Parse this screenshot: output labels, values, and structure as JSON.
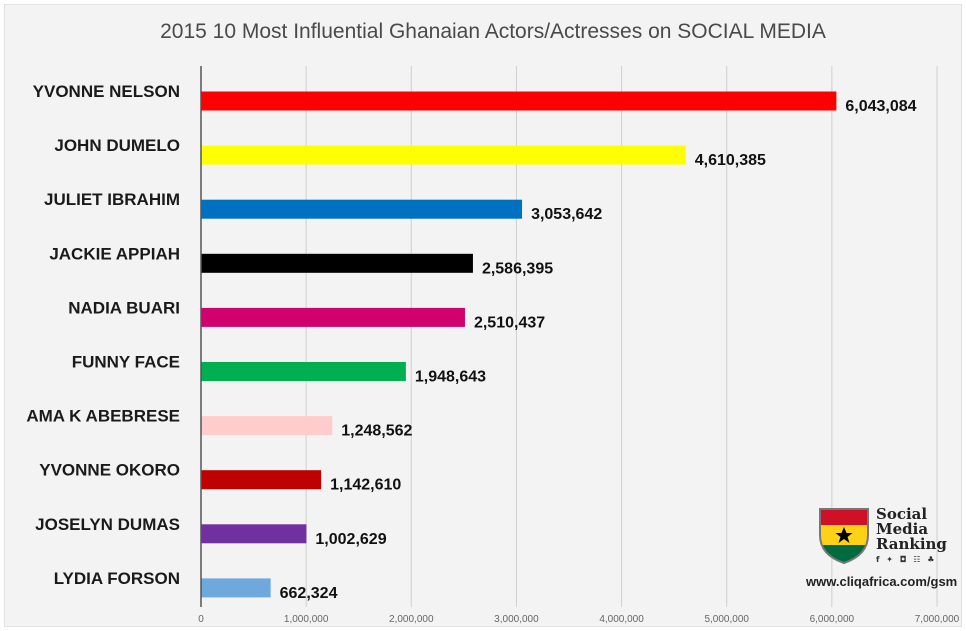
{
  "chart_data": {
    "type": "bar",
    "orientation": "horizontal",
    "title": "2015 10 Most Influential Ghanaian Actors/Actresses on SOCIAL MEDIA",
    "categories": [
      "YVONNE NELSON",
      "JOHN DUMELO",
      "JULIET IBRAHIM",
      "JACKIE APPIAH",
      "NADIA BUARI",
      "FUNNY FACE",
      "AMA K ABEBRESE",
      "YVONNE OKORO",
      "JOSELYN DUMAS",
      "LYDIA FORSON"
    ],
    "values": [
      6043084,
      4610385,
      3053642,
      2586395,
      2510437,
      1948643,
      1248562,
      1142610,
      1002629,
      662324
    ],
    "value_labels": [
      "6,043,084",
      "4,610,385",
      "3,053,642",
      "2,586,395",
      "2,510,437",
      "1,948,643",
      "1,248,562",
      "1,142,610",
      "1,002,629",
      "662,324"
    ],
    "colors": [
      "#ff0000",
      "#ffff00",
      "#0070c0",
      "#000000",
      "#d1006f",
      "#00b050",
      "#ffcccc",
      "#c00000",
      "#7030a0",
      "#6fa8dc"
    ],
    "xlim": [
      0,
      7000000
    ],
    "xticks": [
      0,
      1000000,
      2000000,
      3000000,
      4000000,
      5000000,
      6000000,
      7000000
    ],
    "xtick_labels": [
      "0",
      "1,000,000",
      "2,000,000",
      "3,000,000",
      "4,000,000",
      "5,000,000",
      "6,000,000",
      "7,000,000"
    ],
    "grid": true,
    "legend": "none"
  },
  "logo": {
    "line1": "Social",
    "line2": "Media",
    "line3": "Ranking",
    "social_icons": "f ✦ ◘ ☷ ♣"
  },
  "source": "www.cliqafrica.com/gsm"
}
